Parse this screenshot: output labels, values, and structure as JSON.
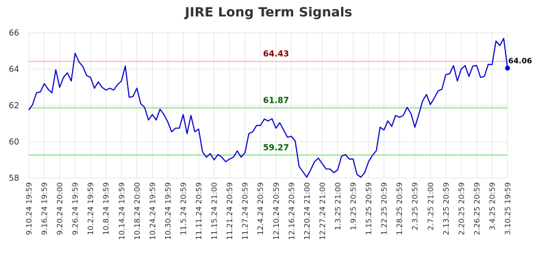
{
  "chart_data": {
    "type": "line",
    "title": "JIRE Long Term Signals",
    "xlabel": "",
    "ylabel": "",
    "ylim": [
      58,
      66
    ],
    "y_ticks": [
      58,
      60,
      62,
      64,
      66
    ],
    "grid": true,
    "x_tick_labels": [
      "9.10.24 19:59",
      "9.16.24 19:59",
      "9.20.24 20:00",
      "9.26.24 19:59",
      "10.2.24 19:59",
      "10.8.24 19:59",
      "10.14.24 19:59",
      "10.18.24 20:00",
      "10.24.24 19:59",
      "10.30.24 19:59",
      "11.5.24 20:59",
      "11.11.24 20:59",
      "11.15.24 21:00",
      "11.21.24 20:59",
      "11.27.24 20:59",
      "12.4.24 20:59",
      "12.10.24 20:59",
      "12.16.24 20:59",
      "12.20.24 21:00",
      "12.27.24 21:00",
      "1.3.25 21:00",
      "1.9.25 20:59",
      "1.15.25 20:59",
      "1.22.25 20:59",
      "1.28.25 20:59",
      "2.3.25 20:59",
      "2.7.25 21:00",
      "2.13.25 20:59",
      "2.20.25 20:59",
      "2.26.25 20:59",
      "3.4.25 20:59",
      "3.10.25 19:59"
    ],
    "series": [
      {
        "color": "#0000cc",
        "values": [
          61.75,
          62.05,
          62.7,
          62.75,
          63.2,
          62.9,
          62.7,
          63.97,
          63.0,
          63.55,
          63.8,
          63.35,
          64.88,
          64.4,
          64.15,
          63.65,
          63.55,
          62.95,
          63.3,
          63.0,
          62.85,
          62.95,
          62.85,
          63.15,
          63.35,
          64.17,
          62.45,
          62.5,
          62.95,
          62.1,
          61.9,
          61.2,
          61.5,
          61.2,
          61.8,
          61.5,
          61.1,
          60.55,
          60.75,
          60.75,
          61.5,
          60.45,
          61.45,
          60.55,
          60.7,
          59.45,
          59.15,
          59.35,
          59.0,
          59.3,
          59.15,
          58.9,
          59.05,
          59.15,
          59.5,
          59.15,
          59.4,
          60.45,
          60.55,
          60.9,
          60.9,
          61.25,
          61.15,
          61.27,
          60.75,
          61.05,
          60.65,
          60.25,
          60.3,
          60.05,
          58.65,
          58.35,
          58.05,
          58.45,
          58.9,
          59.1,
          58.8,
          58.5,
          58.5,
          58.3,
          58.45,
          59.2,
          59.3,
          59.05,
          59.05,
          58.2,
          58.05,
          58.3,
          58.9,
          59.25,
          59.5,
          60.8,
          60.65,
          61.15,
          60.85,
          61.45,
          61.35,
          61.45,
          61.9,
          61.55,
          60.8,
          61.5,
          62.25,
          62.6,
          62.05,
          62.4,
          62.8,
          62.9,
          63.7,
          63.75,
          64.2,
          63.35,
          64.0,
          64.2,
          63.6,
          64.17,
          64.2,
          63.55,
          63.6,
          64.27,
          64.25,
          65.55,
          65.3,
          65.7,
          64.06
        ]
      }
    ],
    "reference_lines": [
      {
        "value": 64.43,
        "label": "64.43",
        "line_color": "#ffb3b3",
        "label_color": "#8b0000"
      },
      {
        "value": 61.87,
        "label": "61.87",
        "line_color": "#80e080",
        "label_color": "#006400"
      },
      {
        "value": 59.27,
        "label": "59.27",
        "line_color": "#80e080",
        "label_color": "#006400"
      }
    ],
    "last_value_label": "64.06"
  }
}
